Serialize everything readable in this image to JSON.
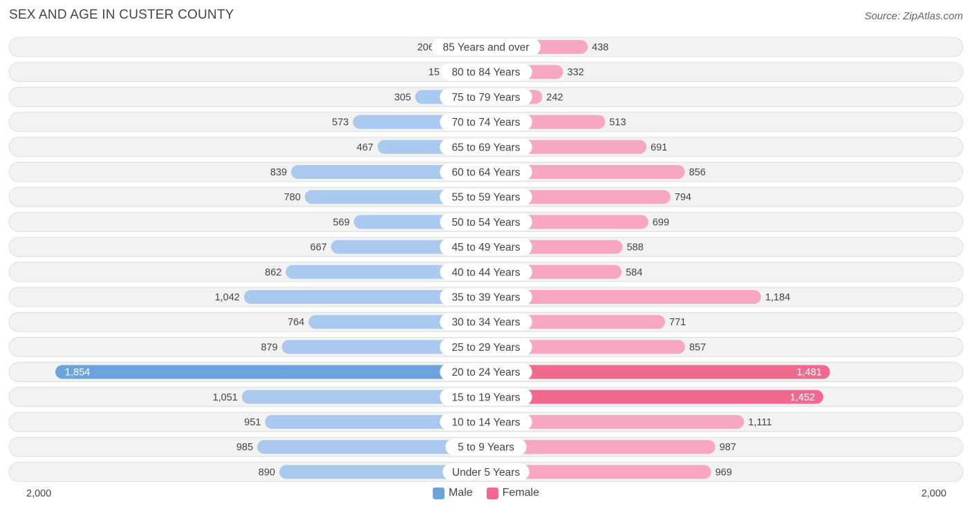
{
  "title": "SEX AND AGE IN CUSTER COUNTY",
  "source": "Source: ZipAtlas.com",
  "colors": {
    "male": "#6ba3dd",
    "male_light": "#a9c9ee",
    "female": "#f0698f",
    "female_light": "#f7a7c0"
  },
  "chart_data": {
    "type": "bar",
    "orientation": "horizontal-diverging",
    "title": "SEX AND AGE IN CUSTER COUNTY",
    "categories": [
      "85 Years and over",
      "80 to 84 Years",
      "75 to 79 Years",
      "70 to 74 Years",
      "65 to 69 Years",
      "60 to 64 Years",
      "55 to 59 Years",
      "50 to 54 Years",
      "45 to 49 Years",
      "40 to 44 Years",
      "35 to 39 Years",
      "30 to 34 Years",
      "25 to 29 Years",
      "20 to 24 Years",
      "15 to 19 Years",
      "10 to 14 Years",
      "5 to 9 Years",
      "Under 5 Years"
    ],
    "series": [
      {
        "name": "Male",
        "values": [
          206,
          158,
          305,
          573,
          467,
          839,
          780,
          569,
          667,
          862,
          1042,
          764,
          879,
          1854,
          1051,
          951,
          985,
          890
        ],
        "labels": [
          "206",
          "158",
          "305",
          "573",
          "467",
          "839",
          "780",
          "569",
          "667",
          "862",
          "1,042",
          "764",
          "879",
          "1,854",
          "1,051",
          "951",
          "985",
          "890"
        ]
      },
      {
        "name": "Female",
        "values": [
          438,
          332,
          242,
          513,
          691,
          856,
          794,
          699,
          588,
          584,
          1184,
          771,
          857,
          1481,
          1452,
          1111,
          987,
          969
        ],
        "labels": [
          "438",
          "332",
          "242",
          "513",
          "691",
          "856",
          "794",
          "699",
          "588",
          "584",
          "1,184",
          "771",
          "857",
          "1,481",
          "1,452",
          "1,111",
          "987",
          "969"
        ]
      }
    ],
    "xlim": [
      -2000,
      2000
    ],
    "axis_labels": {
      "left": "2,000",
      "right": "2,000"
    },
    "legend": {
      "position": "bottom-center",
      "entries": [
        "Male",
        "Female"
      ]
    },
    "grid": false
  }
}
